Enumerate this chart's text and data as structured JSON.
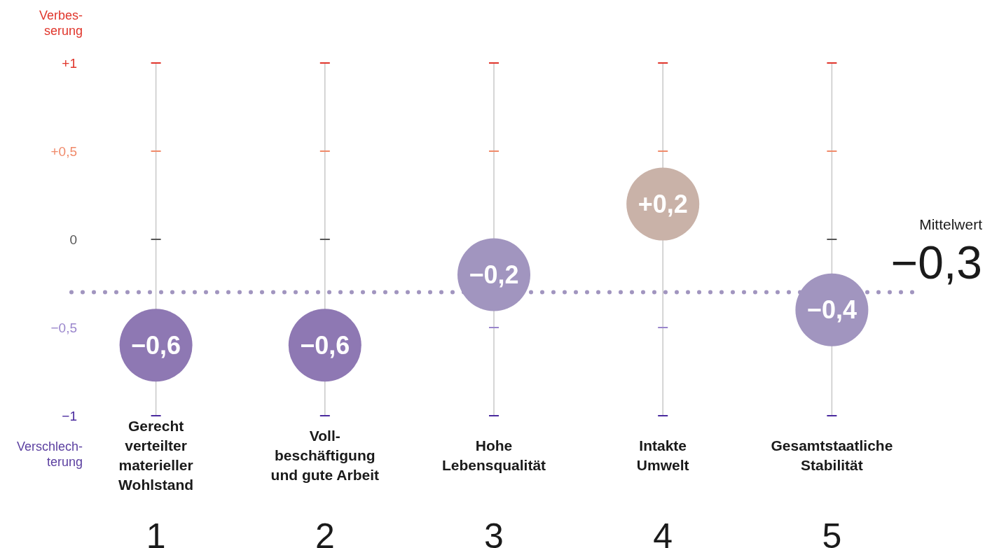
{
  "chart_data": {
    "type": "scatter",
    "categories": [
      "Gerecht\nverteilter\nmaterieller\nWohlstand",
      "Voll-\nbeschäftigung\nund gute Arbeit",
      "Hohe\nLebensqualität",
      "Intakte\nUmwelt",
      "Gesamtstaatliche\nStabilität"
    ],
    "values": [
      -0.6,
      -0.6,
      -0.2,
      0.2,
      -0.4
    ],
    "value_labels": [
      "−0,6",
      "−0,6",
      "−0,2",
      "+0,2",
      "−0,4"
    ],
    "colors": [
      "#8e78b3",
      "#8e78b3",
      "#a195bf",
      "#c9b2a8",
      "#a195bf"
    ],
    "ylim": [
      -1,
      1
    ],
    "yticks": [
      {
        "value": 1,
        "label": "+1"
      },
      {
        "value": 0.5,
        "label": "+0,5"
      },
      {
        "value": 0,
        "label": "0"
      },
      {
        "value": -0.5,
        "label": "−0,5"
      },
      {
        "value": -1,
        "label": "−1"
      }
    ],
    "ref_lines": [
      {
        "axis": "y",
        "value": -0.3,
        "label": "Mittelwert\n−0,3",
        "color": "#a195bf",
        "line_style": "dotted"
      }
    ],
    "annotations": [
      "Verbes-\nserung",
      "Verschlech-\nterung",
      "1",
      "2",
      "3",
      "4",
      "5"
    ],
    "grid": "x",
    "marker": "circle"
  }
}
